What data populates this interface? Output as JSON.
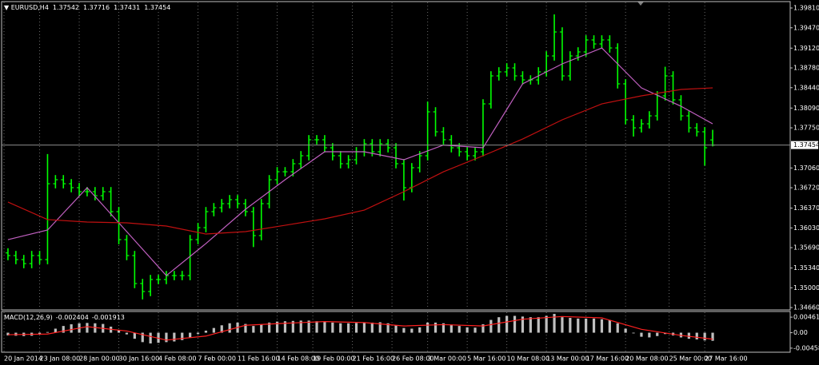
{
  "chart_data": [
    {
      "type": "ohlc",
      "title": "EURUSD,H4",
      "color": "#00ff00",
      "grid": true,
      "xlim": [
        -0.5,
        89.5
      ],
      "ylim": [
        1.3462,
        1.3992
      ],
      "yticks": [
        {
          "value": 1.3981,
          "label": "1.39810"
        },
        {
          "value": 1.3947,
          "label": "1.39470"
        },
        {
          "value": 1.3912,
          "label": "1.39120"
        },
        {
          "value": 1.3878,
          "label": "1.38780"
        },
        {
          "value": 1.3844,
          "label": "1.38440"
        },
        {
          "value": 1.3809,
          "label": "1.38090"
        },
        {
          "value": 1.3775,
          "label": "1.37750"
        },
        {
          "value": 1.3706,
          "label": "1.37060"
        },
        {
          "value": 1.3672,
          "label": "1.36720"
        },
        {
          "value": 1.3637,
          "label": "1.36370"
        },
        {
          "value": 1.3603,
          "label": "1.36030"
        },
        {
          "value": 1.3569,
          "label": "1.35690"
        },
        {
          "value": 1.3534,
          "label": "1.35340"
        },
        {
          "value": 1.35,
          "label": "1.35000"
        },
        {
          "value": 1.3466,
          "label": "1.34660"
        }
      ],
      "current_price": 1.37454,
      "open": [
        1.356,
        1.35554,
        1.35485,
        1.35416,
        1.35554,
        1.35485,
        1.36789,
        1.36858,
        1.36789,
        1.36721,
        1.36652,
        1.36652,
        1.36583,
        1.36652,
        1.36309,
        1.35828,
        1.35554,
        1.35073,
        1.34936,
        1.35142,
        1.35142,
        1.3521,
        1.3521,
        1.3521,
        1.35828,
        1.36034,
        1.36309,
        1.36377,
        1.36446,
        1.36515,
        1.36446,
        1.36309,
        1.35897,
        1.36446,
        1.36858,
        1.36995,
        1.36995,
        1.37133,
        1.3727,
        1.37545,
        1.37545,
        1.37407,
        1.3727,
        1.37133,
        1.37201,
        1.37339,
        1.37476,
        1.37339,
        1.37476,
        1.37407,
        1.37133,
        1.36721,
        1.37064,
        1.3727,
        1.38025,
        1.37682,
        1.37545,
        1.37407,
        1.37339,
        1.3727,
        1.37339,
        1.38162,
        1.38643,
        1.38712,
        1.3878,
        1.38643,
        1.38574,
        1.38574,
        1.38712,
        1.38986,
        1.39398,
        1.38643,
        1.38986,
        1.39055,
        1.39261,
        1.39192,
        1.39261,
        1.39123,
        1.38506,
        1.37888,
        1.3775,
        1.37819,
        1.37956,
        1.383,
        1.38643,
        1.38231,
        1.37956,
        1.3775,
        1.37682,
        1.37542
      ],
      "high": [
        1.3568,
        1.35634,
        1.35565,
        1.35634,
        1.35634,
        1.373,
        1.36938,
        1.36938,
        1.36869,
        1.36801,
        1.36732,
        1.36732,
        1.36732,
        1.36732,
        1.36389,
        1.35908,
        1.35634,
        1.35153,
        1.35222,
        1.35222,
        1.3529,
        1.3529,
        1.3529,
        1.35908,
        1.36114,
        1.36389,
        1.36457,
        1.36526,
        1.36595,
        1.36595,
        1.36526,
        1.36389,
        1.36526,
        1.36938,
        1.37075,
        1.37075,
        1.37213,
        1.3735,
        1.37625,
        1.37625,
        1.37625,
        1.37487,
        1.3735,
        1.37281,
        1.37419,
        1.37556,
        1.37556,
        1.37556,
        1.37556,
        1.37487,
        1.37213,
        1.37144,
        1.3735,
        1.382,
        1.38105,
        1.37762,
        1.37625,
        1.37487,
        1.37419,
        1.37419,
        1.38242,
        1.38723,
        1.38792,
        1.3886,
        1.3886,
        1.38723,
        1.38654,
        1.38792,
        1.39066,
        1.397,
        1.39478,
        1.39066,
        1.39135,
        1.39341,
        1.39341,
        1.39341,
        1.39341,
        1.39203,
        1.38586,
        1.37968,
        1.37899,
        1.38036,
        1.3838,
        1.388,
        1.38723,
        1.38311,
        1.38036,
        1.3783,
        1.37762,
        1.37716
      ],
      "low": [
        1.35474,
        1.35405,
        1.35336,
        1.35336,
        1.35405,
        1.35405,
        1.36709,
        1.36709,
        1.36641,
        1.36572,
        1.36572,
        1.36503,
        1.36503,
        1.36229,
        1.35748,
        1.35474,
        1.34993,
        1.348,
        1.34856,
        1.35062,
        1.35062,
        1.3513,
        1.3513,
        1.3513,
        1.35748,
        1.35954,
        1.36229,
        1.36297,
        1.36366,
        1.36366,
        1.36229,
        1.357,
        1.35817,
        1.36366,
        1.36778,
        1.36915,
        1.36915,
        1.37053,
        1.3719,
        1.37465,
        1.37327,
        1.3719,
        1.37053,
        1.37053,
        1.37121,
        1.37259,
        1.37259,
        1.37259,
        1.37327,
        1.37053,
        1.365,
        1.36641,
        1.36984,
        1.3719,
        1.37602,
        1.37465,
        1.37327,
        1.37259,
        1.3719,
        1.3719,
        1.37259,
        1.38082,
        1.38563,
        1.38632,
        1.38563,
        1.38494,
        1.38494,
        1.38494,
        1.38632,
        1.38906,
        1.38563,
        1.38563,
        1.38906,
        1.38975,
        1.39112,
        1.39112,
        1.39043,
        1.38426,
        1.37808,
        1.376,
        1.3767,
        1.37739,
        1.37876,
        1.3822,
        1.38151,
        1.37876,
        1.3767,
        1.37602,
        1.371,
        1.37431
      ],
      "close": [
        1.35554,
        1.35485,
        1.35416,
        1.35554,
        1.35485,
        1.36789,
        1.36858,
        1.36789,
        1.36721,
        1.36652,
        1.36652,
        1.36583,
        1.36652,
        1.36309,
        1.35828,
        1.35554,
        1.35073,
        1.34936,
        1.35142,
        1.35142,
        1.3521,
        1.3521,
        1.3521,
        1.35828,
        1.36034,
        1.36309,
        1.36377,
        1.36446,
        1.36515,
        1.36446,
        1.36309,
        1.35897,
        1.36446,
        1.36858,
        1.36995,
        1.36995,
        1.37133,
        1.3727,
        1.37545,
        1.37545,
        1.37407,
        1.3727,
        1.37133,
        1.37201,
        1.37339,
        1.37476,
        1.37339,
        1.37476,
        1.37407,
        1.37133,
        1.36721,
        1.37064,
        1.3727,
        1.38025,
        1.37682,
        1.37545,
        1.37407,
        1.37339,
        1.3727,
        1.37339,
        1.38162,
        1.38643,
        1.38712,
        1.3878,
        1.38643,
        1.38574,
        1.38574,
        1.38712,
        1.38986,
        1.39398,
        1.38643,
        1.38986,
        1.39055,
        1.39261,
        1.39192,
        1.39261,
        1.39123,
        1.38506,
        1.37888,
        1.3775,
        1.37819,
        1.37956,
        1.383,
        1.38643,
        1.38231,
        1.37956,
        1.3775,
        1.37682,
        1.37407,
        1.37454
      ],
      "series": [
        {
          "color": "#c060c0",
          "x": [
            0,
            5,
            10,
            15,
            20,
            25,
            30,
            35,
            40,
            45,
            50,
            55,
            60,
            65,
            70,
            75,
            80,
            85,
            89
          ],
          "values": [
            1.35828,
            1.35993,
            1.36721,
            1.35966,
            1.3521,
            1.3576,
            1.3635,
            1.36858,
            1.37339,
            1.37339,
            1.37201,
            1.37454,
            1.37407,
            1.38506,
            1.38849,
            1.39123,
            1.38437,
            1.38121,
            1.37819
          ]
        },
        {
          "color": "#c01010",
          "x": [
            0,
            5,
            10,
            15,
            20,
            25,
            30,
            35,
            40,
            45,
            50,
            55,
            60,
            65,
            70,
            75,
            80,
            85,
            89
          ],
          "values": [
            1.36474,
            1.36172,
            1.3613,
            1.36117,
            1.36062,
            1.35924,
            1.35966,
            1.36075,
            1.36185,
            1.36336,
            1.36652,
            1.36995,
            1.3727,
            1.37558,
            1.37888,
            1.38162,
            1.383,
            1.3841,
            1.38437
          ]
        }
      ]
    },
    {
      "type": "bar",
      "title": "MACD(12,26,9)",
      "color": "#c0c0c0",
      "grid": true,
      "xlim": [
        -0.5,
        89.5
      ],
      "ylim": [
        -0.0058,
        0.0063
      ],
      "yticks": [
        0.004616,
        {
          "value": 0,
          "label": "0.00"
        },
        -0.004586
      ],
      "xticks": [
        {
          "value": -0.5,
          "label": "20 Jan 2014"
        },
        {
          "value": 4,
          "label": "23 Jan 08:00"
        },
        {
          "value": 9,
          "label": "28 Jan 00:00"
        },
        {
          "value": 14,
          "label": "30 Jan 16:00"
        },
        {
          "value": 19,
          "label": "4 Feb 08:00"
        },
        {
          "value": 24,
          "label": "7 Feb 00:00"
        },
        {
          "value": 29,
          "label": "11 Feb 16:00"
        },
        {
          "value": 34,
          "label": "14 Feb 08:00"
        },
        {
          "value": 38.5,
          "label": "19 Feb 00:00"
        },
        {
          "value": 43.5,
          "label": "21 Feb 16:00"
        },
        {
          "value": 48.5,
          "label": "26 Feb 08:00"
        },
        {
          "value": 53,
          "label": "3 Mar 00:00"
        },
        {
          "value": 58,
          "label": "5 Mar 16:00"
        },
        {
          "value": 63,
          "label": "10 Mar 08:00"
        },
        {
          "value": 68,
          "label": "13 Mar 00:00"
        },
        {
          "value": 73,
          "label": "17 Mar 16:00"
        },
        {
          "value": 78,
          "label": "20 Mar 08:00"
        },
        {
          "value": 83.5,
          "label": "25 Mar 00:00"
        },
        {
          "value": 88,
          "label": "27 Mar 16:00"
        }
      ],
      "values": [
        -0.0008,
        -0.0009,
        -0.001,
        -0.0009,
        -0.0006,
        0.0002,
        0.0012,
        0.002,
        0.0025,
        0.0028,
        0.0029,
        0.0028,
        0.0026,
        0.0018,
        0.0008,
        -0.0005,
        -0.0018,
        -0.0028,
        -0.0032,
        -0.003,
        -0.0028,
        -0.0026,
        -0.0022,
        -0.0014,
        -0.0004,
        0.0006,
        0.0014,
        0.0022,
        0.0028,
        0.003,
        0.0026,
        0.002,
        0.0024,
        0.003,
        0.0033,
        0.0034,
        0.0035,
        0.0036,
        0.0036,
        0.0034,
        0.0032,
        0.003,
        0.0028,
        0.0028,
        0.0029,
        0.003,
        0.003,
        0.0031,
        0.0028,
        0.0022,
        0.0014,
        0.0012,
        0.0016,
        0.003,
        0.003,
        0.0028,
        0.0024,
        0.002,
        0.0016,
        0.0015,
        0.0025,
        0.0038,
        0.0046,
        0.005,
        0.005,
        0.0048,
        0.0046,
        0.0046,
        0.005,
        0.0056,
        0.0046,
        0.0044,
        0.0042,
        0.0042,
        0.0042,
        0.004,
        0.0038,
        0.0028,
        0.0012,
        -0.0002,
        -0.0012,
        -0.0014,
        -0.001,
        -0.0004,
        -0.0008,
        -0.0014,
        -0.0018,
        -0.002,
        -0.0023,
        -0.002404
      ],
      "series": [
        {
          "color": "#ff2020",
          "x": [
            0,
            5,
            10,
            15,
            20,
            25,
            30,
            35,
            40,
            45,
            50,
            55,
            60,
            65,
            70,
            75,
            80,
            85,
            89
          ],
          "values": [
            -0.0006,
            -0.0004,
            0.0018,
            0.0005,
            -0.0022,
            -0.001,
            0.0022,
            0.0028,
            0.0033,
            0.003,
            0.002,
            0.0024,
            0.002,
            0.004,
            0.0048,
            0.0044,
            0.001,
            -0.0008,
            -0.001913
          ]
        }
      ]
    }
  ]
}
